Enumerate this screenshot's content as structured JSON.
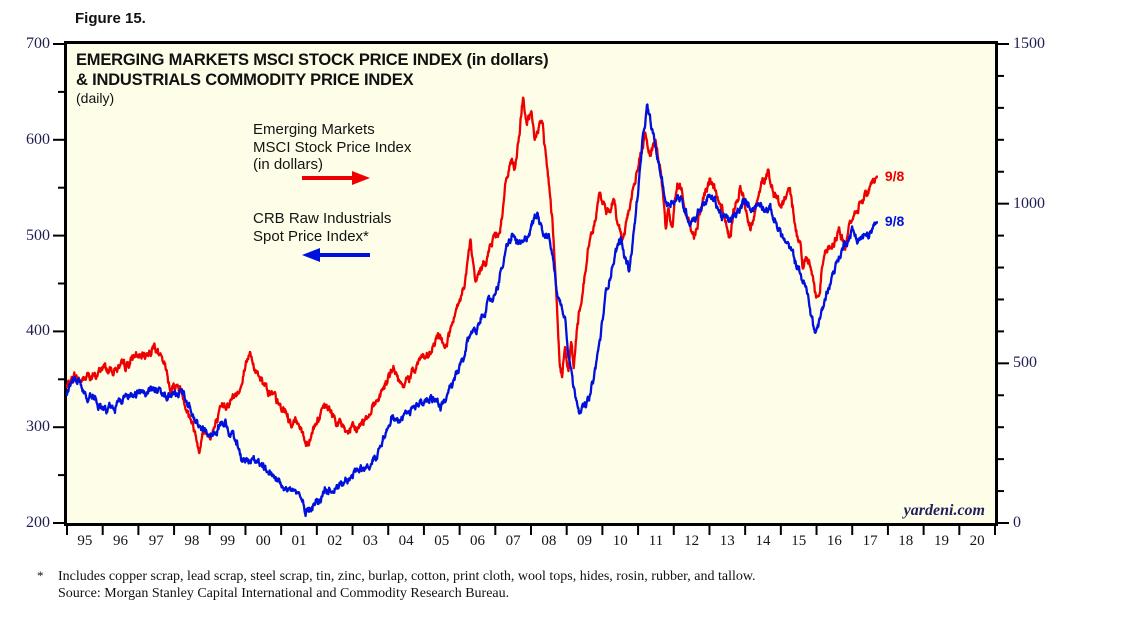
{
  "figure_label": "Figure 15.",
  "chart": {
    "title_line1": "EMERGING MARKETS MSCI STOCK PRICE INDEX (in dollars)",
    "title_line2": "& INDUSTRIALS COMMODITY PRICE INDEX",
    "subtitle": "(daily)",
    "watermark": "yardeni.com",
    "legend_red": {
      "lines": [
        "Emerging Markets",
        "MSCI Stock Price Index",
        "(in dollars)"
      ]
    },
    "legend_blue": {
      "lines": [
        "CRB Raw Industrials",
        "Spot Price Index*"
      ]
    },
    "red_end_label": "9/8",
    "blue_end_label": "9/8"
  },
  "footnote": {
    "marker": "*",
    "line1": "Includes copper scrap, lead scrap, steel scrap, tin, zinc, burlap, cotton, print cloth, wool tops, hides, rosin, rubber, and tallow.",
    "line2": "Source: Morgan Stanley Capital International and Commodity Research Bureau."
  },
  "chart_data": {
    "type": "line",
    "title": "Emerging Markets MSCI Stock Price Index (in dollars) & Industrials Commodity Price Index (daily)",
    "background_color": "#fefee8",
    "frame_color": "#000000",
    "x_axis": {
      "start_year": 1995,
      "end_year": 2021,
      "tick_labels": [
        "95",
        "96",
        "97",
        "98",
        "99",
        "00",
        "01",
        "02",
        "03",
        "04",
        "05",
        "06",
        "07",
        "08",
        "09",
        "10",
        "11",
        "12",
        "13",
        "14",
        "15",
        "16",
        "17",
        "18",
        "19",
        "20"
      ]
    },
    "left_axis": {
      "min": 200,
      "max": 700,
      "major_ticks": [
        700,
        600,
        500,
        400,
        300,
        200
      ],
      "minor_step": 50,
      "series": "CRB Raw Industrials Spot Price Index"
    },
    "right_axis": {
      "min": 0,
      "max": 1500,
      "major_ticks": [
        1500,
        1000,
        500,
        0
      ],
      "minor_step": 100,
      "series": "Emerging Markets MSCI Stock Price Index (in dollars)"
    },
    "series": [
      {
        "name": "Emerging Markets MSCI Stock Price Index (in dollars)",
        "axis": "right",
        "color": "#ee0000",
        "last_date_label": "9/8",
        "last_value": 1085,
        "anchors": [
          [
            1995.0,
            425
          ],
          [
            1995.2,
            462
          ],
          [
            1995.4,
            445
          ],
          [
            1995.6,
            460
          ],
          [
            1995.8,
            455
          ],
          [
            1996.0,
            490
          ],
          [
            1996.2,
            477
          ],
          [
            1996.4,
            487
          ],
          [
            1996.6,
            482
          ],
          [
            1996.8,
            508
          ],
          [
            1996.95,
            528
          ],
          [
            1997.1,
            512
          ],
          [
            1997.3,
            538
          ],
          [
            1997.47,
            560
          ],
          [
            1997.6,
            520
          ],
          [
            1997.75,
            482
          ],
          [
            1997.9,
            420
          ],
          [
            1998.05,
            436
          ],
          [
            1998.2,
            415
          ],
          [
            1998.4,
            350
          ],
          [
            1998.55,
            300
          ],
          [
            1998.7,
            240
          ],
          [
            1998.85,
            292
          ],
          [
            1999.0,
            272
          ],
          [
            1999.2,
            312
          ],
          [
            1999.4,
            368
          ],
          [
            1999.6,
            390
          ],
          [
            1999.8,
            405
          ],
          [
            2000.0,
            500
          ],
          [
            2000.1,
            538
          ],
          [
            2000.25,
            480
          ],
          [
            2000.4,
            465
          ],
          [
            2000.6,
            430
          ],
          [
            2000.8,
            390
          ],
          [
            2001.0,
            356
          ],
          [
            2001.15,
            346
          ],
          [
            2001.3,
            305
          ],
          [
            2001.5,
            322
          ],
          [
            2001.7,
            245
          ],
          [
            2001.9,
            300
          ],
          [
            2002.1,
            340
          ],
          [
            2002.3,
            360
          ],
          [
            2002.5,
            330
          ],
          [
            2002.7,
            300
          ],
          [
            2002.9,
            286
          ],
          [
            2003.1,
            292
          ],
          [
            2003.3,
            320
          ],
          [
            2003.5,
            355
          ],
          [
            2003.7,
            390
          ],
          [
            2003.9,
            430
          ],
          [
            2004.05,
            462
          ],
          [
            2004.2,
            480
          ],
          [
            2004.35,
            420
          ],
          [
            2004.55,
            446
          ],
          [
            2004.75,
            492
          ],
          [
            2004.95,
            528
          ],
          [
            2005.1,
            502
          ],
          [
            2005.3,
            560
          ],
          [
            2005.45,
            585
          ],
          [
            2005.6,
            556
          ],
          [
            2005.8,
            620
          ],
          [
            2006.0,
            682
          ],
          [
            2006.15,
            752
          ],
          [
            2006.3,
            880
          ],
          [
            2006.45,
            745
          ],
          [
            2006.6,
            790
          ],
          [
            2006.8,
            850
          ],
          [
            2007.0,
            900
          ],
          [
            2007.15,
            932
          ],
          [
            2007.3,
            1060
          ],
          [
            2007.45,
            1150
          ],
          [
            2007.55,
            1090
          ],
          [
            2007.7,
            1252
          ],
          [
            2007.78,
            1340
          ],
          [
            2007.88,
            1240
          ],
          [
            2008.0,
            1280
          ],
          [
            2008.1,
            1205
          ],
          [
            2008.2,
            1238
          ],
          [
            2008.33,
            1245
          ],
          [
            2008.5,
            1062
          ],
          [
            2008.6,
            955
          ],
          [
            2008.7,
            762
          ],
          [
            2008.8,
            502
          ],
          [
            2008.87,
            455
          ],
          [
            2008.95,
            556
          ],
          [
            2009.05,
            492
          ],
          [
            2009.13,
            570
          ],
          [
            2009.2,
            476
          ],
          [
            2009.3,
            620
          ],
          [
            2009.45,
            732
          ],
          [
            2009.6,
            860
          ],
          [
            2009.75,
            925
          ],
          [
            2009.95,
            1040
          ],
          [
            2010.1,
            956
          ],
          [
            2010.3,
            1012
          ],
          [
            2010.45,
            940
          ],
          [
            2010.55,
            886
          ],
          [
            2010.7,
            960
          ],
          [
            2010.9,
            1062
          ],
          [
            2011.05,
            1140
          ],
          [
            2011.2,
            1211
          ],
          [
            2011.35,
            1152
          ],
          [
            2011.5,
            1190
          ],
          [
            2011.6,
            1130
          ],
          [
            2011.7,
            1030
          ],
          [
            2011.78,
            906
          ],
          [
            2011.85,
            990
          ],
          [
            2011.95,
            920
          ],
          [
            2012.1,
            1060
          ],
          [
            2012.25,
            1026
          ],
          [
            2012.4,
            950
          ],
          [
            2012.55,
            890
          ],
          [
            2012.7,
            966
          ],
          [
            2012.85,
            1010
          ],
          [
            2013.0,
            1072
          ],
          [
            2013.15,
            1040
          ],
          [
            2013.3,
            1000
          ],
          [
            2013.45,
            950
          ],
          [
            2013.57,
            880
          ],
          [
            2013.7,
            980
          ],
          [
            2013.85,
            1046
          ],
          [
            2014.0,
            990
          ],
          [
            2014.15,
            936
          ],
          [
            2014.3,
            1000
          ],
          [
            2014.45,
            1050
          ],
          [
            2014.64,
            1104
          ],
          [
            2014.8,
            1030
          ],
          [
            2014.97,
            986
          ],
          [
            2015.1,
            1010
          ],
          [
            2015.25,
            1046
          ],
          [
            2015.4,
            930
          ],
          [
            2015.55,
            870
          ],
          [
            2015.62,
            806
          ],
          [
            2015.72,
            840
          ],
          [
            2015.85,
            790
          ],
          [
            2016.0,
            700
          ],
          [
            2016.1,
            750
          ],
          [
            2016.22,
            850
          ],
          [
            2016.35,
            866
          ],
          [
            2016.5,
            890
          ],
          [
            2016.64,
            915
          ],
          [
            2016.8,
            866
          ],
          [
            2016.95,
            940
          ],
          [
            2017.1,
            980
          ],
          [
            2017.25,
            1010
          ],
          [
            2017.4,
            1035
          ],
          [
            2017.55,
            1060
          ],
          [
            2017.69,
            1085
          ]
        ]
      },
      {
        "name": "CRB Raw Industrials Spot Price Index",
        "axis": "left",
        "color": "#0010dd",
        "last_date_label": "9/8",
        "last_value": 514,
        "anchors": [
          [
            1995.0,
            332
          ],
          [
            1995.15,
            347
          ],
          [
            1995.3,
            349
          ],
          [
            1995.5,
            338
          ],
          [
            1995.7,
            330
          ],
          [
            1995.9,
            323
          ],
          [
            1996.1,
            320
          ],
          [
            1996.3,
            322
          ],
          [
            1996.5,
            326
          ],
          [
            1996.7,
            330
          ],
          [
            1996.9,
            334
          ],
          [
            1997.1,
            337
          ],
          [
            1997.3,
            342
          ],
          [
            1997.5,
            338
          ],
          [
            1997.7,
            334
          ],
          [
            1997.9,
            334
          ],
          [
            1998.1,
            337
          ],
          [
            1998.3,
            332
          ],
          [
            1998.5,
            318
          ],
          [
            1998.7,
            297
          ],
          [
            1998.9,
            295
          ],
          [
            1999.1,
            290
          ],
          [
            1999.3,
            300
          ],
          [
            1999.5,
            302
          ],
          [
            1999.7,
            285
          ],
          [
            1999.9,
            270
          ],
          [
            2000.1,
            265
          ],
          [
            2000.3,
            262
          ],
          [
            2000.5,
            256
          ],
          [
            2000.7,
            250
          ],
          [
            2000.9,
            245
          ],
          [
            2001.1,
            240
          ],
          [
            2001.3,
            234
          ],
          [
            2001.5,
            228
          ],
          [
            2001.7,
            214
          ],
          [
            2001.9,
            220
          ],
          [
            2002.1,
            227
          ],
          [
            2002.3,
            234
          ],
          [
            2002.5,
            238
          ],
          [
            2002.7,
            243
          ],
          [
            2002.9,
            249
          ],
          [
            2003.1,
            252
          ],
          [
            2003.3,
            257
          ],
          [
            2003.5,
            262
          ],
          [
            2003.7,
            273
          ],
          [
            2003.9,
            294
          ],
          [
            2004.1,
            315
          ],
          [
            2004.3,
            306
          ],
          [
            2004.5,
            312
          ],
          [
            2004.7,
            318
          ],
          [
            2004.9,
            326
          ],
          [
            2005.1,
            330
          ],
          [
            2005.25,
            332
          ],
          [
            2005.45,
            323
          ],
          [
            2005.65,
            330
          ],
          [
            2005.85,
            348
          ],
          [
            2006.1,
            369
          ],
          [
            2006.3,
            398
          ],
          [
            2006.5,
            404
          ],
          [
            2006.7,
            423
          ],
          [
            2006.95,
            436
          ],
          [
            2007.15,
            460
          ],
          [
            2007.35,
            490
          ],
          [
            2007.5,
            500
          ],
          [
            2007.65,
            490
          ],
          [
            2007.8,
            490
          ],
          [
            2007.95,
            505
          ],
          [
            2008.1,
            518
          ],
          [
            2008.2,
            524
          ],
          [
            2008.35,
            505
          ],
          [
            2008.5,
            498
          ],
          [
            2008.6,
            480
          ],
          [
            2008.7,
            450
          ],
          [
            2008.8,
            430
          ],
          [
            2008.95,
            419
          ],
          [
            2009.05,
            381
          ],
          [
            2009.2,
            340
          ],
          [
            2009.35,
            322
          ],
          [
            2009.5,
            320
          ],
          [
            2009.65,
            330
          ],
          [
            2009.8,
            360
          ],
          [
            2009.95,
            395
          ],
          [
            2010.1,
            440
          ],
          [
            2010.25,
            465
          ],
          [
            2010.4,
            487
          ],
          [
            2010.52,
            496
          ],
          [
            2010.62,
            478
          ],
          [
            2010.75,
            465
          ],
          [
            2010.9,
            510
          ],
          [
            2011.05,
            565
          ],
          [
            2011.15,
            605
          ],
          [
            2011.25,
            633
          ],
          [
            2011.4,
            608
          ],
          [
            2011.55,
            580
          ],
          [
            2011.7,
            552
          ],
          [
            2011.8,
            532
          ],
          [
            2011.95,
            537
          ],
          [
            2012.15,
            540
          ],
          [
            2012.3,
            528
          ],
          [
            2012.45,
            516
          ],
          [
            2012.6,
            520
          ],
          [
            2012.8,
            532
          ],
          [
            2012.95,
            540
          ],
          [
            2013.15,
            537
          ],
          [
            2013.35,
            520
          ],
          [
            2013.55,
            515
          ],
          [
            2013.75,
            520
          ],
          [
            2013.95,
            534
          ],
          [
            2014.2,
            530
          ],
          [
            2014.45,
            534
          ],
          [
            2014.7,
            527
          ],
          [
            2014.9,
            510
          ],
          [
            2015.1,
            495
          ],
          [
            2015.3,
            482
          ],
          [
            2015.5,
            465
          ],
          [
            2015.7,
            445
          ],
          [
            2015.85,
            418
          ],
          [
            2015.96,
            398
          ],
          [
            2016.1,
            412
          ],
          [
            2016.3,
            443
          ],
          [
            2016.45,
            460
          ],
          [
            2016.6,
            475
          ],
          [
            2016.8,
            492
          ],
          [
            2017.0,
            506
          ],
          [
            2017.15,
            496
          ],
          [
            2017.3,
            498
          ],
          [
            2017.45,
            500
          ],
          [
            2017.58,
            505
          ],
          [
            2017.69,
            514
          ]
        ]
      }
    ]
  }
}
